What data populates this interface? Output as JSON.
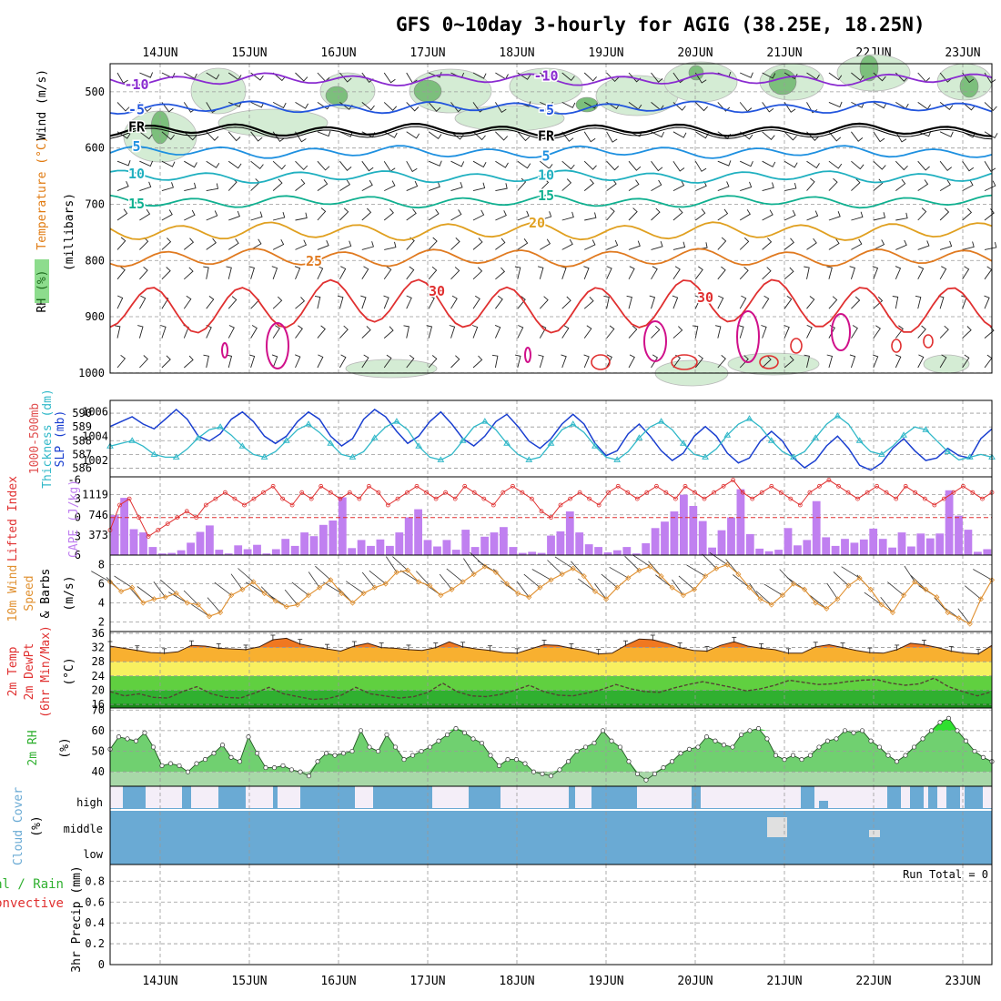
{
  "title": "GFS 0~10day 3-hourly for AGIG (38.25E, 18.25N)",
  "dates": [
    "14JUN",
    "15JUN",
    "16JUN",
    "17JUN",
    "18JUN",
    "19JUN",
    "20JUN",
    "21JUN",
    "22JUN",
    "23JUN"
  ],
  "chart_data": [
    {
      "type": "contour",
      "panel": "upper-air",
      "ylabel_parts": [
        {
          "text": "RH (%)",
          "color": "#2a8a2a"
        },
        {
          "text": "Temperature (°C)",
          "color": "#e07a10"
        },
        {
          "text": "Wind (m/s)",
          "color": "#000000"
        }
      ],
      "ylabel2": "(millibars)",
      "yticks": [
        500,
        600,
        700,
        800,
        900,
        1000
      ],
      "ylim": [
        1000,
        450
      ],
      "isotherms": [
        {
          "value": -10,
          "level_mb": 478,
          "color": "#8a2bd0"
        },
        {
          "value": -5,
          "level_mb": 528,
          "color": "#2255dd"
        },
        {
          "value": 0,
          "label": "FR",
          "level_mb": 568,
          "color": "#000000"
        },
        {
          "value": 5,
          "level_mb": 607,
          "color": "#1e90e0"
        },
        {
          "value": 10,
          "level_mb": 651,
          "color": "#20b0c0"
        },
        {
          "value": 15,
          "level_mb": 695,
          "color": "#10b090"
        },
        {
          "value": 20,
          "level_mb": 748,
          "color": "#e0a020"
        },
        {
          "value": 25,
          "level_mb": 795,
          "color": "#e07a20"
        },
        {
          "value": 30,
          "level_mb": 880,
          "color": "#e03030"
        }
      ],
      "contour_labels": [
        "-10",
        "-5",
        "FR",
        "5",
        "10",
        "15",
        "20",
        "25",
        "30"
      ]
    },
    {
      "type": "line",
      "panel": "slp-thickness",
      "ylabel_left": "1000-500mb Thickness (dm)",
      "ylabel_right": "SLP (mb)",
      "y_left_ticks": [
        586,
        587,
        588,
        589,
        590
      ],
      "y_right_ticks": [
        1002,
        1004,
        1006
      ],
      "series": [
        {
          "name": "SLP (mb)",
          "color": "#1a3fd0",
          "values": [
            1004.8,
            1005.2,
            1005.6,
            1005.0,
            1004.6,
            1005.4,
            1006.2,
            1005.4,
            1004.0,
            1003.6,
            1004.2,
            1005.4,
            1006.0,
            1005.2,
            1004.0,
            1003.4,
            1004.0,
            1005.2,
            1006.0,
            1005.4,
            1004.0,
            1003.2,
            1003.8,
            1005.4,
            1006.2,
            1005.6,
            1004.4,
            1003.4,
            1004.0,
            1005.2,
            1006.0,
            1005.0,
            1003.8,
            1003.2,
            1004.0,
            1005.2,
            1005.8,
            1004.8,
            1003.6,
            1003.0,
            1003.8,
            1005.0,
            1005.8,
            1005.0,
            1003.4,
            1002.4,
            1002.8,
            1004.2,
            1005.0,
            1004.0,
            1002.8,
            1002.0,
            1002.6,
            1004.0,
            1004.8,
            1004.0,
            1002.6,
            1001.8,
            1002.2,
            1003.6,
            1004.4,
            1003.6,
            1002.2,
            1001.4,
            1002.0,
            1003.2,
            1004.0,
            1003.0,
            1001.6,
            1001.2,
            1001.8,
            1003.0,
            1003.8,
            1002.8,
            1002.0,
            1002.2,
            1003.0,
            1002.4,
            1002.2,
            1003.8,
            1004.6
          ]
        },
        {
          "name": "1000-500mb Thickness (dm)",
          "color": "#30b8c8",
          "values": [
            587.6,
            587.8,
            588.0,
            587.6,
            587.0,
            586.8,
            586.8,
            587.4,
            588.2,
            588.8,
            589.0,
            588.4,
            587.6,
            587.0,
            586.8,
            587.2,
            588.0,
            588.8,
            589.2,
            588.6,
            587.8,
            587.0,
            586.8,
            587.2,
            588.2,
            589.0,
            589.4,
            588.8,
            587.6,
            586.8,
            586.6,
            587.0,
            588.0,
            589.0,
            589.4,
            588.8,
            587.8,
            587.0,
            586.6,
            586.8,
            587.8,
            588.8,
            589.2,
            588.6,
            587.6,
            586.8,
            586.6,
            587.2,
            588.2,
            589.0,
            589.4,
            588.8,
            587.8,
            587.0,
            586.8,
            587.4,
            588.4,
            589.2,
            589.6,
            589.0,
            588.0,
            587.2,
            586.8,
            587.2,
            588.2,
            589.2,
            589.8,
            589.2,
            588.0,
            587.2,
            587.0,
            587.6,
            588.4,
            589.0,
            588.8,
            588.0,
            587.2,
            586.6,
            586.8,
            587.0,
            586.8
          ]
        }
      ]
    },
    {
      "type": "bar+line",
      "panel": "lifted-index-cape",
      "ylabel_left": "Lifted Index",
      "ylabel_right": "CAPE (J/kg)",
      "y_left_ticks": [
        -6,
        -3,
        0,
        3,
        6
      ],
      "y_right_ticks": [
        373,
        746,
        1119
      ],
      "lifted_index_ref": 0,
      "series": [
        {
          "name": "CAPE (J/kg)",
          "color": "#c080f0",
          "values": [
            740,
            1060,
            480,
            420,
            150,
            30,
            40,
            90,
            230,
            430,
            550,
            100,
            30,
            180,
            110,
            190,
            30,
            110,
            300,
            170,
            420,
            350,
            560,
            640,
            1070,
            130,
            280,
            170,
            290,
            170,
            420,
            700,
            850,
            280,
            160,
            280,
            100,
            470,
            150,
            340,
            420,
            520,
            150,
            40,
            60,
            40,
            360,
            440,
            810,
            420,
            200,
            150,
            50,
            90,
            150,
            30,
            220,
            500,
            620,
            810,
            1120,
            910,
            630,
            140,
            460,
            700,
            1220,
            390,
            120,
            70,
            100,
            500,
            180,
            280,
            1000,
            330,
            170,
            300,
            230,
            290,
            490,
            300,
            140,
            420,
            160,
            400,
            310,
            400,
            1200,
            730,
            470,
            60,
            110
          ]
        },
        {
          "name": "Lifted Index",
          "color": "#e03030",
          "values": [
            2,
            -2,
            -3,
            0,
            3,
            2,
            1,
            0,
            -1,
            0,
            -2,
            -3,
            -4,
            -3,
            -2,
            -3,
            -4,
            -5,
            -3,
            -2,
            -4,
            -3,
            -5,
            -4,
            -3,
            -4,
            -3,
            -5,
            -4,
            -2,
            -3,
            -4,
            -5,
            -4,
            -3,
            -4,
            -3,
            -5,
            -4,
            -3,
            -2,
            -4,
            -5,
            -4,
            -3,
            -1,
            0,
            -2,
            -3,
            -4,
            -3,
            -2,
            -4,
            -5,
            -4,
            -3,
            -4,
            -5,
            -4,
            -3,
            -5,
            -4,
            -3,
            -4,
            -5,
            -6,
            -4,
            -3,
            -4,
            -5,
            -4,
            -3,
            -2,
            -4,
            -5,
            -6,
            -5,
            -4,
            -3,
            -4,
            -5,
            -4,
            -3,
            -5,
            -4,
            -3,
            -2,
            -3,
            -4,
            -5,
            -4,
            -3,
            -4
          ]
        }
      ]
    },
    {
      "type": "line",
      "panel": "10m-wind",
      "ylabel_left": "10m Wind Speed & Barbs",
      "ylabel_right": "(m/s)",
      "yticks": [
        2,
        4,
        6,
        8
      ],
      "series": [
        {
          "name": "10m Wind Speed (m/s)",
          "color": "#e09030",
          "values": [
            6.2,
            5.2,
            5.6,
            4.0,
            4.4,
            4.6,
            5.0,
            4.0,
            3.8,
            2.6,
            3.0,
            4.8,
            5.4,
            6.2,
            5.0,
            4.2,
            3.6,
            3.8,
            4.8,
            5.6,
            6.4,
            5.0,
            4.0,
            5.0,
            5.6,
            6.0,
            7.2,
            7.4,
            6.2,
            5.8,
            4.8,
            5.4,
            6.2,
            7.0,
            7.8,
            7.2,
            6.0,
            5.0,
            4.6,
            5.6,
            6.4,
            7.0,
            7.6,
            6.8,
            5.2,
            4.4,
            5.6,
            6.6,
            7.4,
            7.8,
            6.8,
            5.6,
            4.8,
            5.4,
            6.8,
            7.6,
            8.0,
            7.0,
            5.6,
            4.4,
            3.8,
            4.8,
            6.0,
            5.4,
            4.0,
            3.4,
            4.4,
            5.8,
            6.6,
            5.4,
            3.8,
            3.0,
            4.8,
            6.2,
            5.4,
            4.6,
            3.0,
            2.4,
            1.8,
            4.4,
            6.4
          ]
        }
      ]
    },
    {
      "type": "area+line",
      "panel": "2m-temp",
      "ylabel_left": "2m Temp / 2m DewPt / (6hr Min/Max)",
      "ylabel_right": "(°C)",
      "yticks": [
        16,
        20,
        24,
        28,
        32,
        36
      ],
      "ylim": [
        15,
        36.5
      ],
      "series": [
        {
          "name": "2m Temp (°C)",
          "color": "#e05020",
          "values": [
            32.4,
            31.8,
            31.2,
            30.6,
            30.4,
            30.8,
            32.6,
            32.4,
            31.8,
            31.6,
            31.4,
            32.2,
            34.2,
            34.6,
            33.0,
            32.2,
            31.6,
            31.0,
            32.4,
            33.2,
            32.0,
            31.8,
            31.4,
            31.2,
            32.0,
            33.6,
            32.2,
            31.6,
            31.2,
            30.6,
            30.4,
            31.6,
            32.8,
            32.6,
            31.8,
            31.2,
            30.2,
            30.4,
            32.6,
            34.4,
            34.2,
            33.2,
            32.0,
            31.2,
            31.0,
            32.6,
            33.6,
            32.4,
            31.8,
            31.4,
            30.4,
            30.4,
            32.2,
            32.8,
            32.0,
            31.2,
            30.6,
            30.4,
            31.4,
            33.2,
            32.8,
            32.0,
            31.0,
            30.4,
            30.2,
            32.6
          ]
        },
        {
          "name": "2m DewPt (°C)",
          "color": "#554433",
          "values": [
            19.6,
            18.4,
            19.0,
            18.0,
            17.8,
            19.6,
            21.0,
            19.0,
            18.0,
            17.8,
            19.2,
            20.8,
            19.0,
            18.2,
            17.4,
            17.6,
            18.6,
            20.8,
            19.0,
            18.4,
            17.8,
            18.2,
            19.4,
            22.0,
            19.6,
            18.4,
            18.2,
            18.8,
            20.0,
            21.4,
            19.6,
            18.6,
            18.4,
            19.2,
            20.2,
            21.6,
            20.4,
            19.6,
            19.4,
            20.6,
            21.6,
            22.4,
            21.6,
            20.8,
            19.8,
            20.4,
            21.4,
            22.8,
            22.2,
            21.6,
            21.8,
            22.4,
            22.8,
            23.0,
            22.0,
            21.4,
            21.8,
            23.4,
            21.0,
            19.6,
            18.4,
            19.6
          ]
        }
      ]
    },
    {
      "type": "area",
      "panel": "2m-rh",
      "ylabel_left": "2m RH",
      "ylabel_right": "(%)",
      "yticks": [
        40,
        50,
        60,
        70
      ],
      "series": [
        {
          "name": "2m RH (%)",
          "color": "#30c030",
          "values": [
            51,
            57,
            56,
            55,
            59,
            52,
            43,
            44,
            43,
            40,
            44,
            46,
            49,
            53,
            47,
            45,
            57,
            49,
            42,
            42,
            43,
            41,
            40,
            38,
            45,
            49,
            48,
            49,
            50,
            60,
            52,
            50,
            58,
            52,
            46,
            48,
            50,
            52,
            55,
            58,
            61,
            59,
            56,
            54,
            48,
            43,
            46,
            46,
            44,
            40,
            39,
            38,
            41,
            45,
            50,
            52,
            54,
            60,
            55,
            52,
            45,
            39,
            36,
            39,
            42,
            45,
            49,
            51,
            52,
            57,
            55,
            53,
            52,
            58,
            60,
            61,
            56,
            48,
            46,
            48,
            46,
            48,
            52,
            55,
            56,
            60,
            59,
            60,
            55,
            52,
            48,
            45,
            48,
            52,
            56,
            60,
            64,
            66,
            60,
            55,
            50,
            47,
            45
          ]
        }
      ]
    },
    {
      "type": "area",
      "panel": "cloud-cover",
      "ylabel_left": "Cloud Cover",
      "ylabel_right": "(%)",
      "layers": [
        "high",
        "middle",
        "low"
      ]
    },
    {
      "type": "bar",
      "panel": "precip",
      "ylabel_left_parts": [
        {
          "text": "Total / Rain",
          "color": "#30b030"
        },
        {
          "text": "Convective",
          "color": "#e03030"
        }
      ],
      "ylabel_right": "3hr Precip (mm)",
      "yticks": [
        0,
        0.2,
        0.4,
        0.6,
        0.8
      ],
      "run_total_label": "Run Total = 0",
      "series": [
        {
          "name": "3hr Precip (mm)",
          "values": []
        }
      ]
    }
  ]
}
